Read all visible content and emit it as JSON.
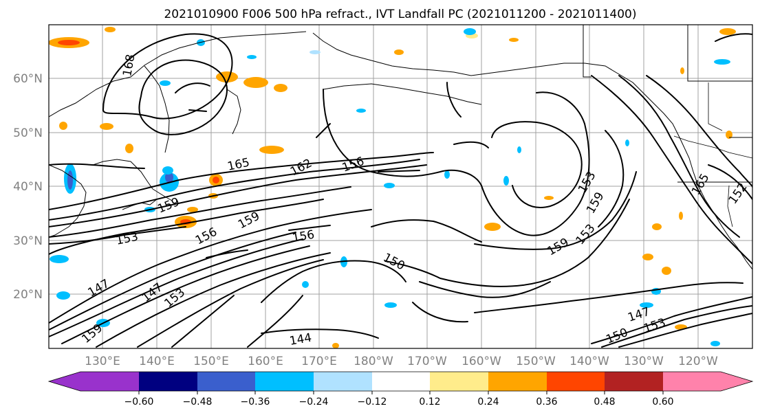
{
  "title": "2021010900 F006 500 hPa refract., IVT Landfall PC (2021011200 - 2021011400)",
  "lon_ticks": [
    "130°E",
    "140°E",
    "150°E",
    "160°E",
    "170°E",
    "180°W",
    "170°W",
    "160°W",
    "150°W",
    "140°W",
    "130°W",
    "120°W"
  ],
  "lat_ticks": [
    "60°N",
    "50°N",
    "40°N",
    "30°N",
    "20°N"
  ],
  "contour_labels": [
    "168",
    "165",
    "162",
    "156",
    "159",
    "153",
    "156",
    "159",
    "156",
    "150",
    "147",
    "147",
    "144",
    "153",
    "159",
    "159",
    "153",
    "147",
    "153",
    "150",
    "153",
    "159",
    "165",
    "152"
  ],
  "colorbar": {
    "tick_labels": [
      "−0.60",
      "−0.48",
      "−0.36",
      "−0.24",
      "−0.12",
      "0.12",
      "0.24",
      "0.36",
      "0.48",
      "0.60"
    ],
    "colors": [
      "#9932cc",
      "#000080",
      "#3a5fcd",
      "#00bfff",
      "#b0e2ff",
      "#ffffff",
      "#ffec8b",
      "#ffa500",
      "#ff4500",
      "#b22222",
      "#ff82ab"
    ]
  }
}
